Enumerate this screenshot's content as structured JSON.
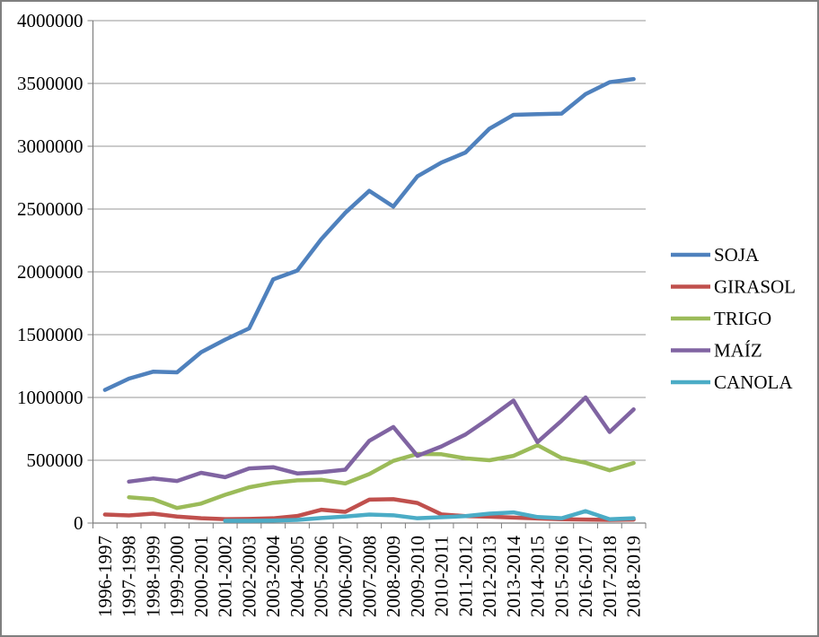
{
  "chart_data": {
    "type": "line",
    "categories": [
      "1996-1997",
      "1997-1998",
      "1998-1999",
      "1999-2000",
      "2000-2001",
      "2001-2002",
      "2002-2003",
      "2003-2004",
      "2004-2005",
      "2005-2006",
      "2006-2007",
      "2007-2008",
      "2008-2009",
      "2009-2010",
      "2010-2011",
      "2011-2012",
      "2012-2013",
      "2013-2014",
      "2014-2015",
      "2015-2016",
      "2016-2017",
      "2017-2018",
      "2018-2019"
    ],
    "series": [
      {
        "name": "SOJA",
        "color": "#4F81BD",
        "values": [
          1060000,
          1150000,
          1205000,
          1200000,
          1360000,
          1460000,
          1550000,
          1940000,
          2010000,
          2260000,
          2470000,
          2645000,
          2520000,
          2760000,
          2870000,
          2950000,
          3140000,
          3250000,
          3255000,
          3260000,
          3415000,
          3510000,
          3535000
        ]
      },
      {
        "name": "GIRASOL",
        "color": "#C0504D",
        "values": [
          68000,
          61000,
          75000,
          52000,
          38000,
          31000,
          33000,
          38000,
          56000,
          106000,
          89000,
          187000,
          190000,
          160000,
          69000,
          55000,
          51000,
          44000,
          37000,
          30000,
          28000,
          25000,
          28000
        ]
      },
      {
        "name": "TRIGO",
        "color": "#9BBB59",
        "values": [
          null,
          205000,
          190000,
          120000,
          155000,
          225000,
          285000,
          320000,
          340000,
          345000,
          315000,
          390000,
          495000,
          550000,
          548000,
          515000,
          500000,
          535000,
          620000,
          518000,
          480000,
          420000,
          478000
        ]
      },
      {
        "name": "MAÍZ",
        "color": "#8064A2",
        "values": [
          null,
          330000,
          355000,
          335000,
          400000,
          365000,
          435000,
          445000,
          395000,
          405000,
          425000,
          655000,
          765000,
          535000,
          610000,
          705000,
          835000,
          975000,
          645000,
          815000,
          1000000,
          725000,
          905000
        ]
      },
      {
        "name": "CANOLA",
        "color": "#4BACC6",
        "values": [
          null,
          null,
          null,
          null,
          null,
          18000,
          18000,
          20000,
          25000,
          40000,
          52000,
          68000,
          62000,
          38000,
          46000,
          55000,
          75000,
          85000,
          48000,
          38000,
          95000,
          30000,
          38000
        ]
      }
    ],
    "title": "",
    "xlabel": "",
    "ylabel": "",
    "ylim": [
      0,
      4000000
    ],
    "y_tick_step": 500000,
    "y_tick_labels": [
      "0",
      "500000",
      "1000000",
      "1500000",
      "2000000",
      "2500000",
      "3000000",
      "3500000",
      "4000000"
    ],
    "grid": "horizontal",
    "legend_position": "right",
    "axis_color": "#7f7f7f",
    "grid_color": "#979797"
  }
}
